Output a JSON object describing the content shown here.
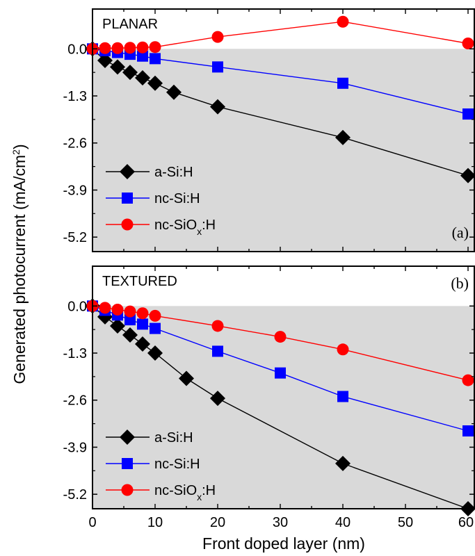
{
  "figure": {
    "ylabel": "Generated photocurrent (mA/cm",
    "ylabel_sup": "2",
    "ylabel_close": ")",
    "xlabel": "Front doped layer (nm)",
    "x_ticks": [
      "0",
      "10",
      "20",
      "30",
      "40",
      "50",
      "60"
    ],
    "colors": {
      "shade": "#d9d9d9",
      "a_si": "#000000",
      "nc_si": "#0000ff",
      "nc_siox": "#ff0000"
    }
  },
  "chart_data": [
    {
      "type": "line",
      "panel_title": "PLANAR",
      "panel_letter": "(a)",
      "xlabel": "Front doped layer (nm)",
      "ylabel": "Generated photocurrent (mA/cm²)",
      "xlim": [
        0,
        61
      ],
      "ylim": [
        -5.6,
        1.1
      ],
      "y_ticks": [
        "0.0",
        "-1.3",
        "-2.6",
        "-3.9",
        "-5.2"
      ],
      "y_tick_values": [
        0.0,
        -1.3,
        -2.6,
        -3.9,
        -5.2
      ],
      "shaded_below": 0,
      "legend_position": "bottom-left",
      "series": [
        {
          "name": "a-Si:H",
          "color": "#000000",
          "marker": "diamond",
          "x": [
            0,
            2,
            4,
            6,
            8,
            10,
            13,
            20,
            40,
            60
          ],
          "y": [
            0.0,
            -0.32,
            -0.5,
            -0.65,
            -0.8,
            -0.95,
            -1.2,
            -1.6,
            -2.45,
            -3.5
          ]
        },
        {
          "name": "nc-Si:H",
          "color": "#0000ff",
          "marker": "square",
          "x": [
            0,
            2,
            4,
            6,
            8,
            10,
            20,
            40,
            60
          ],
          "y": [
            0.0,
            -0.05,
            -0.1,
            -0.15,
            -0.2,
            -0.27,
            -0.5,
            -0.95,
            -1.8
          ]
        },
        {
          "name": "nc-SiOx:H",
          "name_base": "nc-SiO",
          "name_sub": "x",
          "name_tail": ":H",
          "color": "#ff0000",
          "marker": "circle",
          "x": [
            0,
            2,
            4,
            6,
            8,
            10,
            20,
            40,
            60
          ],
          "y": [
            0.0,
            0.02,
            0.02,
            0.03,
            0.04,
            0.05,
            0.33,
            0.75,
            0.15
          ]
        }
      ]
    },
    {
      "type": "line",
      "panel_title": "TEXTURED",
      "panel_letter": "(b)",
      "xlabel": "Front doped layer (nm)",
      "ylabel": "Generated photocurrent (mA/cm²)",
      "xlim": [
        0,
        61
      ],
      "ylim": [
        -5.6,
        1.1
      ],
      "y_ticks": [
        "0.0",
        "-1.3",
        "-2.6",
        "-3.9",
        "-5.2"
      ],
      "y_tick_values": [
        0.0,
        -1.3,
        -2.6,
        -3.9,
        -5.2
      ],
      "shaded_below": 0,
      "legend_position": "bottom-left",
      "series": [
        {
          "name": "a-Si:H",
          "color": "#000000",
          "marker": "diamond",
          "x": [
            0,
            2,
            4,
            6,
            8,
            10,
            15,
            20,
            40,
            60
          ],
          "y": [
            0.0,
            -0.3,
            -0.55,
            -0.8,
            -1.05,
            -1.3,
            -2.0,
            -2.55,
            -4.35,
            -5.6
          ]
        },
        {
          "name": "nc-Si:H",
          "color": "#0000ff",
          "marker": "square",
          "x": [
            0,
            2,
            4,
            6,
            8,
            10,
            20,
            30,
            40,
            60
          ],
          "y": [
            0.0,
            -0.12,
            -0.25,
            -0.38,
            -0.5,
            -0.62,
            -1.25,
            -1.85,
            -2.5,
            -3.45
          ]
        },
        {
          "name": "nc-SiOx:H",
          "name_base": "nc-SiO",
          "name_sub": "x",
          "name_tail": ":H",
          "color": "#ff0000",
          "marker": "circle",
          "x": [
            0,
            2,
            4,
            6,
            8,
            10,
            20,
            30,
            40,
            60
          ],
          "y": [
            0.0,
            -0.05,
            -0.1,
            -0.15,
            -0.2,
            -0.27,
            -0.55,
            -0.85,
            -1.2,
            -2.05
          ]
        }
      ]
    }
  ]
}
